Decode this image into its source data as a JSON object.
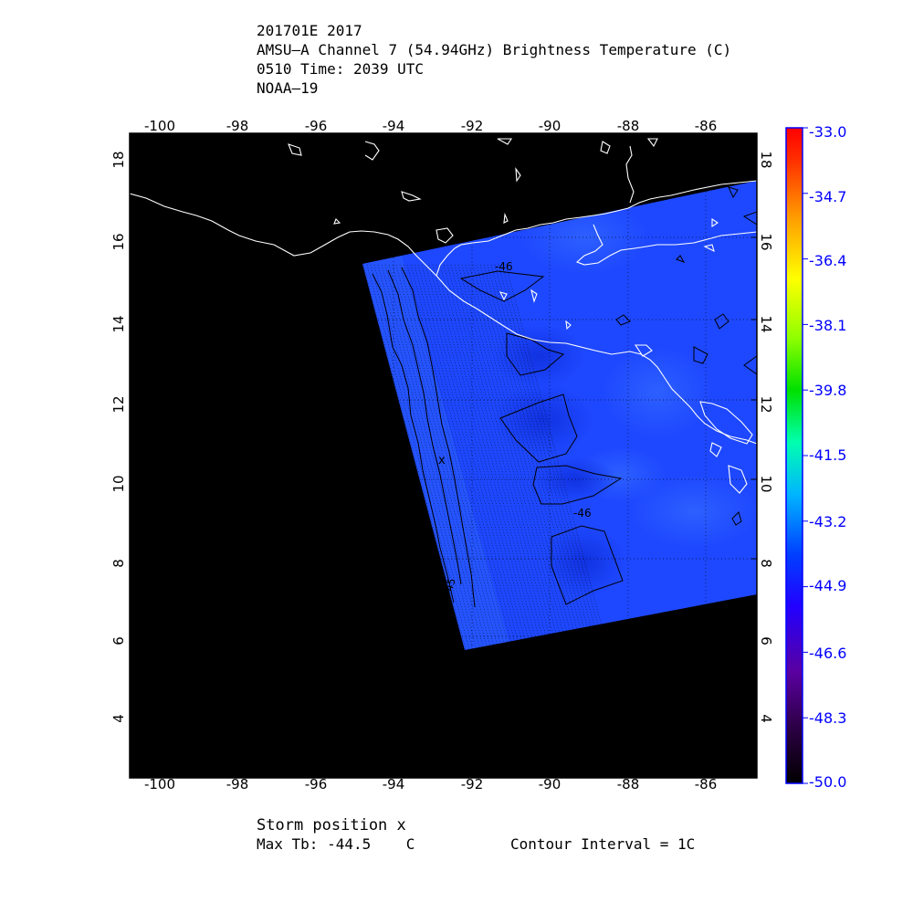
{
  "header": {
    "line1": "201701E 2017",
    "line2": "AMSU–A Channel 7 (54.94GHz) Brightness Temperature (C)",
    "line3": "0510 Time: 2039 UTC",
    "line4": "NOAA–19"
  },
  "map": {
    "lon_ticks": [
      "-100",
      "-98",
      "-96",
      "-94",
      "-92",
      "-90",
      "-88",
      "-86"
    ],
    "lat_ticks": [
      "18",
      "16",
      "14",
      "12",
      "10",
      "8",
      "6",
      "4"
    ],
    "contour_labels": [
      "-46",
      "-46",
      "-45"
    ],
    "storm_marker": "x",
    "colors": {
      "background": "#000000",
      "swath": "#1e48ff",
      "swath_dark": "#1433e0",
      "swath_light": "#2e64ff",
      "coastline": "#ffffff",
      "contour": "#000000"
    }
  },
  "colorbar": {
    "labels": [
      "-33.0",
      "-34.7",
      "-36.4",
      "-38.1",
      "-39.8",
      "-41.5",
      "-43.2",
      "-44.9",
      "-46.6",
      "-48.3",
      "-50.0"
    ],
    "label_color": "#0000ff"
  },
  "footer": {
    "storm_position": "Storm position x",
    "max_tb": "Max Tb: -44.5    C",
    "contour_interval": "Contour Interval = 1C"
  }
}
